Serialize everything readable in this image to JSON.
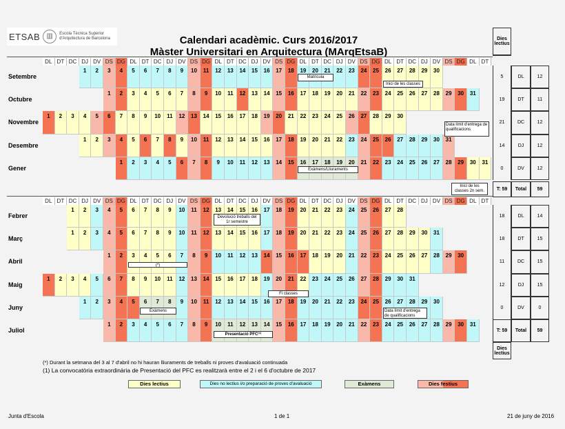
{
  "logo": {
    "name": "ETSAB",
    "line1": "Escola Tècnica Superior",
    "line2": "d'Arquitectura de Barcelona"
  },
  "title": "Calendari acadèmic. Curs 2016/2017",
  "subtitle": "Màster Universitari en  Arquitectura (MArqEtsaB)",
  "dies_lectius_label": "Dies lectius",
  "weekdays": [
    "DL",
    "DT",
    "DC",
    "DJ",
    "DV",
    "DS",
    "DG"
  ],
  "day_types": {
    "L": "Dies lectius",
    "N": "Dies no lectius i/o preparació de proves d'avaluació",
    "E": "Exàmens",
    "S": "Dissabte",
    "G": "Dies festius"
  },
  "colors": {
    "L": "#ffffc8",
    "N": "#c0f8fa",
    "E": "#dfe9d6",
    "S": "#f9b8a9",
    "G": "#f47352"
  },
  "sections": [
    {
      "months": [
        {
          "name": "Setembre",
          "first_weekday": 3,
          "types": "NNSGNNNNNSGNNNNNSGNNNNNGGLLLLL"
        },
        {
          "name": "Octubre",
          "first_weekday": 5,
          "types": "SGLLLLLSGLLGLLSGLLLLLSGLLLLLSGN"
        },
        {
          "name": "Novembre",
          "first_weekday": 0,
          "types": "GLLLSGLLLLLSGLLLLLSGLLLLLSGLLL"
        },
        {
          "name": "Desembre",
          "first_weekday": 3,
          "types": "LLSGLGLGLSGLLLLLSGLLLLNSGGNNNNS"
        },
        {
          "name": "Gener",
          "first_weekday": 6,
          "types": "GNNNNGSGNNNNNSGEEEEESGNNNNNSGLL"
        }
      ],
      "dies_lectius": [
        "5",
        "19",
        "21",
        "14",
        "0"
      ],
      "weekday_totals": [
        [
          "DL",
          "12"
        ],
        [
          "DT",
          "11"
        ],
        [
          "DC",
          "12"
        ],
        [
          "DJ",
          "12"
        ],
        [
          "DV",
          "12"
        ]
      ],
      "t_label": "T: 59",
      "total_label": "Total",
      "total": "59"
    },
    {
      "months": [
        {
          "name": "Febrer",
          "first_weekday": 2,
          "types": "LLNSGLLLLNSGLLLLNSGLLLLNSGLL"
        },
        {
          "name": "Març",
          "first_weekday": 2,
          "types": "LLNSGLLLLNSGLLLLNSGLLLLNSGLLLLN"
        },
        {
          "name": "Abril",
          "first_weekday": 5,
          "types": "SGLLLLNSGNNNNGSGGLLLNSGLLLLNSG"
        },
        {
          "name": "Maig",
          "first_weekday": 0,
          "types": "GLLLNSGLLLLNSGLLLLNSGLNNNNSGNNN"
        },
        {
          "name": "Juny",
          "first_weekday": 3,
          "types": "NNSGGEEENSGNNNNNSGNNNNNGGNNNNN"
        },
        {
          "name": "Juliol",
          "first_weekday": 5,
          "types": "SGNNNNNSGEEEEESGNNNNNSGNNNNNSGN"
        }
      ],
      "dies_lectius": [
        "18",
        "18",
        "11",
        "12",
        "0"
      ],
      "weekday_totals": [
        [
          "DL",
          "14"
        ],
        [
          "DT",
          "15"
        ],
        [
          "DC",
          "15"
        ],
        [
          "DJ",
          "15"
        ],
        [
          "DV",
          "0"
        ]
      ],
      "t_label": "T: 59",
      "total_label": "Total",
      "total": "59"
    }
  ],
  "notes": {
    "matricula": "Matrícula",
    "inici_classes": "Inici de les classes",
    "data_limit_1": "Data límit d'entrega de qualificacions",
    "examens_lliuraments": "Exàmens/Lliuraments",
    "inici_2n_sem": "Inici de les classes 2n sem.",
    "devolucio": "Devolució treballs del 1r semestre",
    "asterisk": "(*)",
    "fi_classes": "Fi classes",
    "examens": "Exàmens",
    "data_limit_2": "Data límit d'entrega de qualificacions",
    "presentacio": "Presentació PFC⁽¹⁾"
  },
  "footnotes": [
    "(*) Durant la setmana del 3 al 7 d'abril no hi hauran lliuraments de treballs ni proves d'avaluació continuada",
    "(1) La convocatòria extraordinària de Presentació del PFC es realitzarà entre el 2 i el 6 d'octubre de 2017"
  ],
  "legend": {
    "lectius": "Dies lectius",
    "no_lectius": "Dies no lectius i/o preparació de proves d'avaluació",
    "examens": "Exàmens",
    "festius_a": "Dies ",
    "festius_b": "festius"
  },
  "footer": {
    "left": "Junta d'Escola",
    "center": "1 de 1",
    "right": "21 de juny de 2016"
  }
}
